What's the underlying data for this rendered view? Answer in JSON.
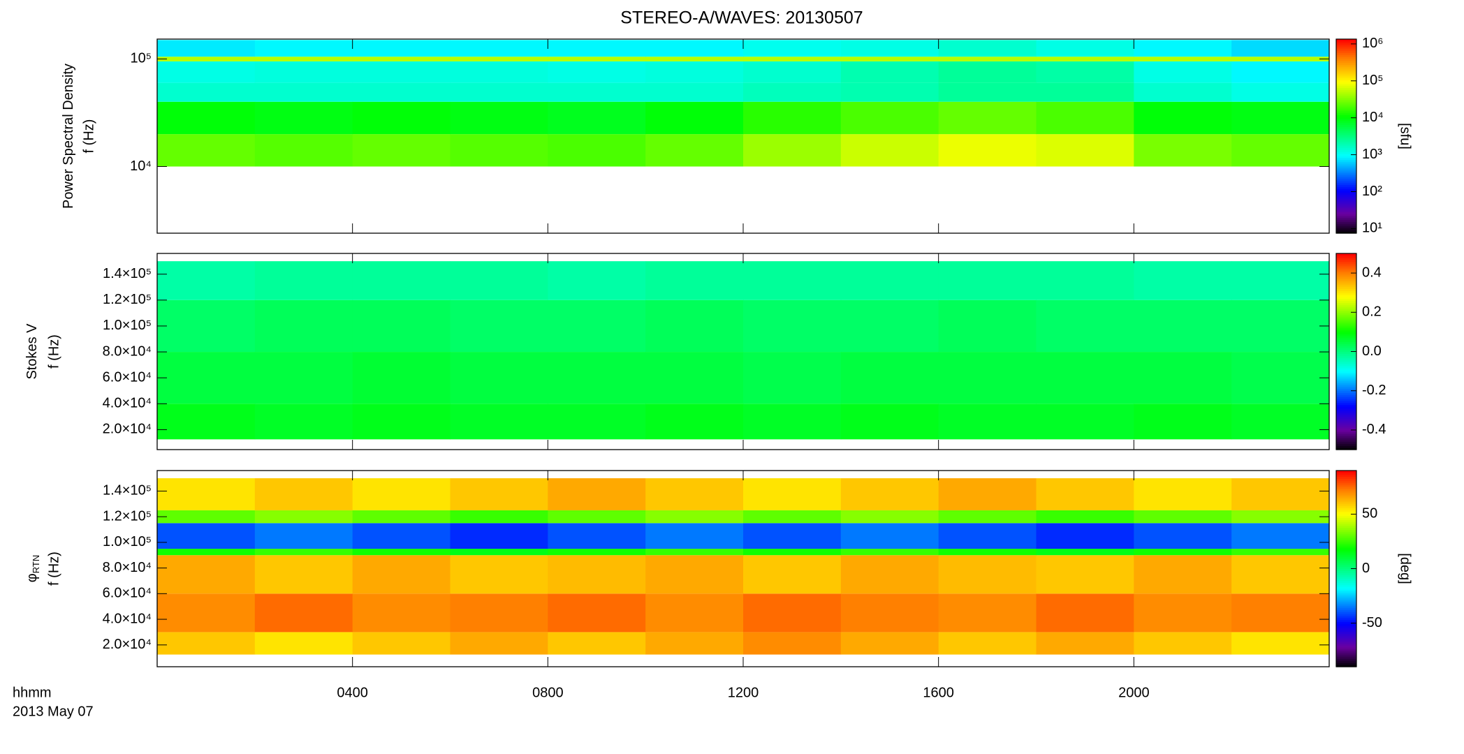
{
  "chart_data": [
    {
      "type": "heatmap",
      "title": "STEREO-A/WAVES: 20130507",
      "ylabel": "Power Spectral Density",
      "ylabel2": "f (Hz)",
      "ylog": true,
      "xlim": [
        0,
        24
      ],
      "xticks": [
        4,
        8,
        12,
        16,
        20
      ],
      "ylim": [
        2400,
        153000
      ],
      "yticks": [
        {
          "value": 10000,
          "label": "10⁴"
        },
        {
          "value": 100000,
          "label": "10⁵"
        }
      ],
      "x": [
        0,
        2,
        4,
        6,
        8,
        10,
        12,
        14,
        16,
        18,
        20,
        22,
        24
      ],
      "y": [
        10000,
        20000,
        40000,
        60000,
        95000,
        105000,
        150000
      ],
      "values": [
        [
          25000,
          22000,
          25000,
          22000,
          20000,
          25000,
          40000,
          60000,
          80000,
          70000,
          30000,
          25000
        ],
        [
          10000,
          9000,
          10000,
          9000,
          8000,
          10000,
          15000,
          20000,
          25000,
          20000,
          10000,
          9000
        ],
        [
          1500,
          1500,
          1500,
          1500,
          1500,
          1500,
          1800,
          2000,
          2500,
          2500,
          1500,
          1200
        ],
        [
          1200,
          1300,
          1300,
          1300,
          1200,
          1300,
          1500,
          2000,
          2500,
          2200,
          1200,
          900
        ],
        [
          50000,
          50000,
          50000,
          50000,
          50000,
          50000,
          50000,
          50000,
          50000,
          50000,
          50000,
          50000
        ],
        [
          800,
          900,
          900,
          900,
          900,
          900,
          1100,
          1200,
          1500,
          1200,
          900,
          700
        ]
      ],
      "clog": true,
      "clim": [
        7.5,
        1350000
      ],
      "cticks": [
        {
          "value": 10,
          "label": "10¹"
        },
        {
          "value": 100,
          "label": "10²"
        },
        {
          "value": 1000,
          "label": "10³"
        },
        {
          "value": 10000,
          "label": "10⁴"
        },
        {
          "value": 100000,
          "label": "10⁵"
        },
        {
          "value": 1000000,
          "label": "10⁶"
        }
      ],
      "clabel": "[sfu]"
    },
    {
      "type": "heatmap",
      "ylabel": "Stokes V",
      "ylabel2": "f (Hz)",
      "ylog": false,
      "xlim": [
        0,
        24
      ],
      "xticks": [
        4,
        8,
        12,
        16,
        20
      ],
      "ylim": [
        4600,
        156000
      ],
      "yticks": [
        {
          "value": 20000,
          "label": "2.0×10⁴"
        },
        {
          "value": 40000,
          "label": "4.0×10⁴"
        },
        {
          "value": 60000,
          "label": "6.0×10⁴"
        },
        {
          "value": 80000,
          "label": "8.0×10⁴"
        },
        {
          "value": 100000,
          "label": "1.0×10⁵"
        },
        {
          "value": 120000,
          "label": "1.2×10⁵"
        },
        {
          "value": 140000,
          "label": "1.4×10⁵"
        }
      ],
      "x": [
        0,
        2,
        4,
        6,
        8,
        10,
        12,
        14,
        16,
        18,
        20,
        22,
        24
      ],
      "y": [
        12500,
        40000,
        80000,
        120000,
        150000
      ],
      "values": [
        [
          0.08,
          0.07,
          0.08,
          0.07,
          0.07,
          0.08,
          0.07,
          0.08,
          0.07,
          0.07,
          0.08,
          0.07
        ],
        [
          0.05,
          0.05,
          0.06,
          0.05,
          0.05,
          0.05,
          0.04,
          0.05,
          0.05,
          0.05,
          0.05,
          0.04
        ],
        [
          0.02,
          0.03,
          0.03,
          0.02,
          0.02,
          0.03,
          0.02,
          0.02,
          0.03,
          0.02,
          0.02,
          0.02
        ],
        [
          -0.03,
          -0.02,
          -0.02,
          -0.02,
          -0.03,
          -0.02,
          -0.02,
          -0.02,
          -0.02,
          -0.02,
          -0.03,
          -0.03
        ]
      ],
      "clog": false,
      "clim": [
        -0.5,
        0.5
      ],
      "cticks": [
        {
          "value": -0.4,
          "label": "-0.4"
        },
        {
          "value": -0.2,
          "label": "-0.2"
        },
        {
          "value": 0,
          "label": "0.0"
        },
        {
          "value": 0.2,
          "label": "0.2"
        },
        {
          "value": 0.4,
          "label": "0.4"
        }
      ]
    },
    {
      "type": "heatmap",
      "ylabel": "φ",
      "ylabel_sub": "RTN",
      "ylabel2": "f (Hz)",
      "ylog": false,
      "xlabel": "hhmm",
      "date": "2013 May 07",
      "xlim": [
        0,
        24
      ],
      "xticks": [
        {
          "value": 4,
          "label": "0400"
        },
        {
          "value": 8,
          "label": "0800"
        },
        {
          "value": 12,
          "label": "1200"
        },
        {
          "value": 16,
          "label": "1600"
        },
        {
          "value": 20,
          "label": "2000"
        }
      ],
      "ylim": [
        3000,
        156000
      ],
      "yticks": [
        {
          "value": 20000,
          "label": "2.0×10⁴"
        },
        {
          "value": 40000,
          "label": "4.0×10⁴"
        },
        {
          "value": 60000,
          "label": "6.0×10⁴"
        },
        {
          "value": 80000,
          "label": "8.0×10⁴"
        },
        {
          "value": 100000,
          "label": "1.0×10⁵"
        },
        {
          "value": 120000,
          "label": "1.2×10⁵"
        },
        {
          "value": 140000,
          "label": "1.4×10⁵"
        }
      ],
      "x": [
        0,
        2,
        4,
        6,
        8,
        10,
        12,
        14,
        16,
        18,
        20,
        22,
        24
      ],
      "y": [
        12500,
        30000,
        60000,
        90000,
        95000,
        115000,
        125000,
        150000
      ],
      "values": [
        [
          60,
          55,
          60,
          65,
          60,
          65,
          70,
          65,
          60,
          65,
          60,
          55
        ],
        [
          70,
          75,
          70,
          72,
          75,
          70,
          75,
          72,
          70,
          75,
          70,
          72
        ],
        [
          65,
          60,
          65,
          60,
          62,
          65,
          60,
          65,
          62,
          60,
          65,
          60
        ],
        [
          20,
          25,
          20,
          15,
          20,
          25,
          20,
          25,
          20,
          15,
          20,
          25
        ],
        [
          -40,
          -35,
          -40,
          -45,
          -40,
          -35,
          -40,
          -35,
          -40,
          -45,
          -40,
          -35
        ],
        [
          30,
          35,
          30,
          25,
          30,
          35,
          30,
          35,
          30,
          25,
          30,
          35
        ],
        [
          55,
          60,
          55,
          60,
          65,
          60,
          55,
          60,
          65,
          60,
          55,
          60
        ]
      ],
      "clog": false,
      "clim": [
        -90,
        90
      ],
      "cticks": [
        -50,
        0,
        50
      ],
      "clabel": "[deg]"
    }
  ]
}
